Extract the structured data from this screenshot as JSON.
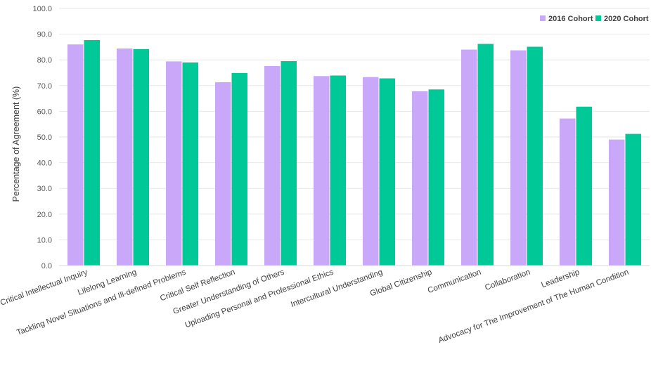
{
  "chart_data": {
    "type": "bar",
    "ylabel": "Percentage of Agreement (%)",
    "xlabel": "",
    "ylim": [
      0,
      100
    ],
    "yticks": [
      "0.0",
      "10.0",
      "20.0",
      "30.0",
      "40.0",
      "50.0",
      "60.0",
      "70.0",
      "80.0",
      "90.0",
      "100.0"
    ],
    "grid": true,
    "legend_position": "top-right",
    "categories": [
      "Critical Intellectual Inquiry",
      "Lifelong Learning",
      "Tackling Novel Situations and Ill-defined Problems",
      "Critical Self Reflection",
      "Greater Understanding of Others",
      "Uploading Personal and Professional Ethics",
      "Intercultural Understanding",
      "Global Citizenship",
      "Communication",
      "Collaboration",
      "Leadership",
      "Advocacy for The Improvement of The Human Condition"
    ],
    "series": [
      {
        "name": "2016 Cohort",
        "color": "#c9a8fa",
        "values": [
          86.0,
          84.4,
          79.4,
          71.3,
          77.6,
          73.7,
          73.3,
          67.8,
          84.0,
          83.7,
          57.2,
          49.0
        ]
      },
      {
        "name": "2020 Cohort",
        "color": "#00c896",
        "values": [
          87.7,
          84.2,
          79.0,
          74.9,
          79.5,
          73.9,
          72.8,
          68.5,
          86.2,
          85.1,
          61.8,
          51.2
        ]
      }
    ]
  }
}
